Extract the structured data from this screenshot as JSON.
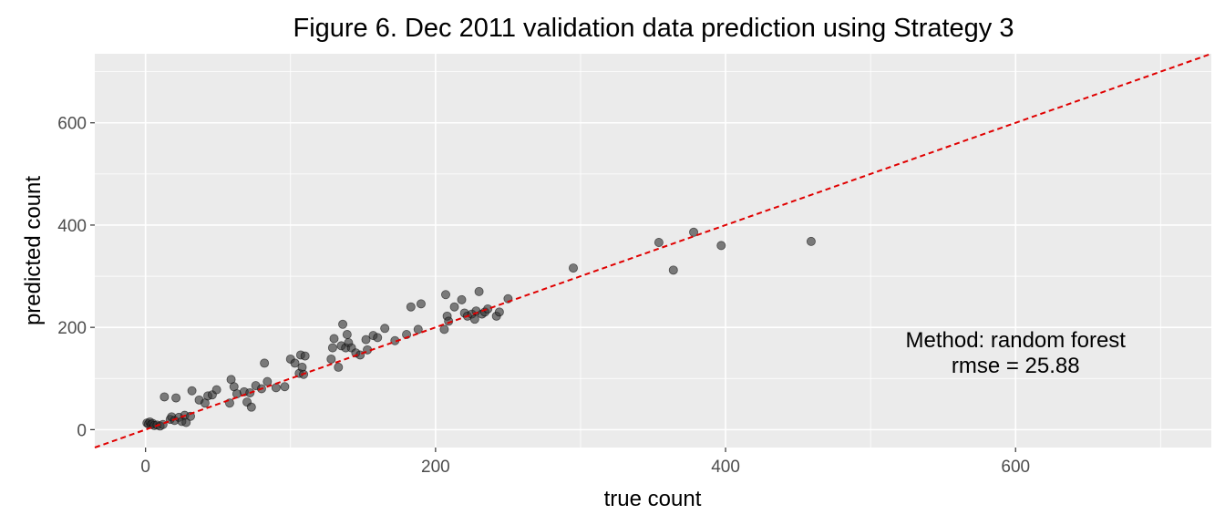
{
  "chart_data": {
    "type": "scatter",
    "title": "Figure 6. Dec 2011 validation data prediction using Strategy 3",
    "xlabel": "true count",
    "ylabel": "predicted count",
    "xlim": [
      -35,
      735
    ],
    "ylim": [
      -35,
      735
    ],
    "x_ticks": [
      0,
      200,
      400,
      600
    ],
    "y_ticks": [
      0,
      200,
      400,
      600
    ],
    "x_tick_labels": [
      "0",
      "200",
      "400",
      "600"
    ],
    "y_tick_labels": [
      "0",
      "200",
      "400",
      "600"
    ],
    "grid": true,
    "legend": "none",
    "colors": {
      "panel": "#ebebeb",
      "grid": "#ffffff",
      "points": "#333333",
      "reference_line": "#e00000"
    },
    "reference_line": {
      "slope": 1,
      "intercept": 0,
      "style": "dashed"
    },
    "annotation": {
      "line1": "Method: random forest",
      "line2": "rmse = 25.88",
      "x": 600,
      "y": 150
    },
    "points": [
      {
        "x": 1,
        "y": 13
      },
      {
        "x": 2,
        "y": 11
      },
      {
        "x": 3,
        "y": 15
      },
      {
        "x": 4,
        "y": 10
      },
      {
        "x": 5,
        "y": 12
      },
      {
        "x": 6,
        "y": 8
      },
      {
        "x": 8,
        "y": 9
      },
      {
        "x": 10,
        "y": 7
      },
      {
        "x": 12,
        "y": 10
      },
      {
        "x": 13,
        "y": 64
      },
      {
        "x": 17,
        "y": 20
      },
      {
        "x": 18,
        "y": 25
      },
      {
        "x": 20,
        "y": 18
      },
      {
        "x": 21,
        "y": 62
      },
      {
        "x": 23,
        "y": 24
      },
      {
        "x": 25,
        "y": 16
      },
      {
        "x": 27,
        "y": 28
      },
      {
        "x": 28,
        "y": 14
      },
      {
        "x": 31,
        "y": 26
      },
      {
        "x": 32,
        "y": 76
      },
      {
        "x": 37,
        "y": 58
      },
      {
        "x": 41,
        "y": 52
      },
      {
        "x": 43,
        "y": 66
      },
      {
        "x": 46,
        "y": 68
      },
      {
        "x": 49,
        "y": 78
      },
      {
        "x": 58,
        "y": 52
      },
      {
        "x": 59,
        "y": 98
      },
      {
        "x": 61,
        "y": 84
      },
      {
        "x": 63,
        "y": 70
      },
      {
        "x": 68,
        "y": 74
      },
      {
        "x": 70,
        "y": 54
      },
      {
        "x": 72,
        "y": 72
      },
      {
        "x": 73,
        "y": 44
      },
      {
        "x": 76,
        "y": 86
      },
      {
        "x": 80,
        "y": 80
      },
      {
        "x": 82,
        "y": 130
      },
      {
        "x": 84,
        "y": 94
      },
      {
        "x": 90,
        "y": 82
      },
      {
        "x": 96,
        "y": 84
      },
      {
        "x": 100,
        "y": 138
      },
      {
        "x": 103,
        "y": 130
      },
      {
        "x": 106,
        "y": 110
      },
      {
        "x": 107,
        "y": 146
      },
      {
        "x": 108,
        "y": 122
      },
      {
        "x": 110,
        "y": 144
      },
      {
        "x": 109,
        "y": 108
      },
      {
        "x": 128,
        "y": 138
      },
      {
        "x": 129,
        "y": 160
      },
      {
        "x": 130,
        "y": 178
      },
      {
        "x": 133,
        "y": 122
      },
      {
        "x": 135,
        "y": 164
      },
      {
        "x": 136,
        "y": 206
      },
      {
        "x": 138,
        "y": 160
      },
      {
        "x": 139,
        "y": 186
      },
      {
        "x": 140,
        "y": 170
      },
      {
        "x": 142,
        "y": 160
      },
      {
        "x": 145,
        "y": 150
      },
      {
        "x": 148,
        "y": 146
      },
      {
        "x": 152,
        "y": 176
      },
      {
        "x": 153,
        "y": 156
      },
      {
        "x": 157,
        "y": 184
      },
      {
        "x": 160,
        "y": 180
      },
      {
        "x": 165,
        "y": 198
      },
      {
        "x": 172,
        "y": 174
      },
      {
        "x": 180,
        "y": 186
      },
      {
        "x": 183,
        "y": 240
      },
      {
        "x": 188,
        "y": 196
      },
      {
        "x": 190,
        "y": 246
      },
      {
        "x": 206,
        "y": 196
      },
      {
        "x": 207,
        "y": 264
      },
      {
        "x": 208,
        "y": 222
      },
      {
        "x": 209,
        "y": 212
      },
      {
        "x": 213,
        "y": 240
      },
      {
        "x": 218,
        "y": 254
      },
      {
        "x": 220,
        "y": 228
      },
      {
        "x": 222,
        "y": 222
      },
      {
        "x": 225,
        "y": 226
      },
      {
        "x": 227,
        "y": 216
      },
      {
        "x": 228,
        "y": 232
      },
      {
        "x": 230,
        "y": 270
      },
      {
        "x": 232,
        "y": 226
      },
      {
        "x": 234,
        "y": 230
      },
      {
        "x": 236,
        "y": 236
      },
      {
        "x": 242,
        "y": 222
      },
      {
        "x": 244,
        "y": 230
      },
      {
        "x": 250,
        "y": 256
      },
      {
        "x": 295,
        "y": 316
      },
      {
        "x": 354,
        "y": 366
      },
      {
        "x": 364,
        "y": 312
      },
      {
        "x": 378,
        "y": 386
      },
      {
        "x": 397,
        "y": 360
      },
      {
        "x": 459,
        "y": 368
      }
    ]
  }
}
